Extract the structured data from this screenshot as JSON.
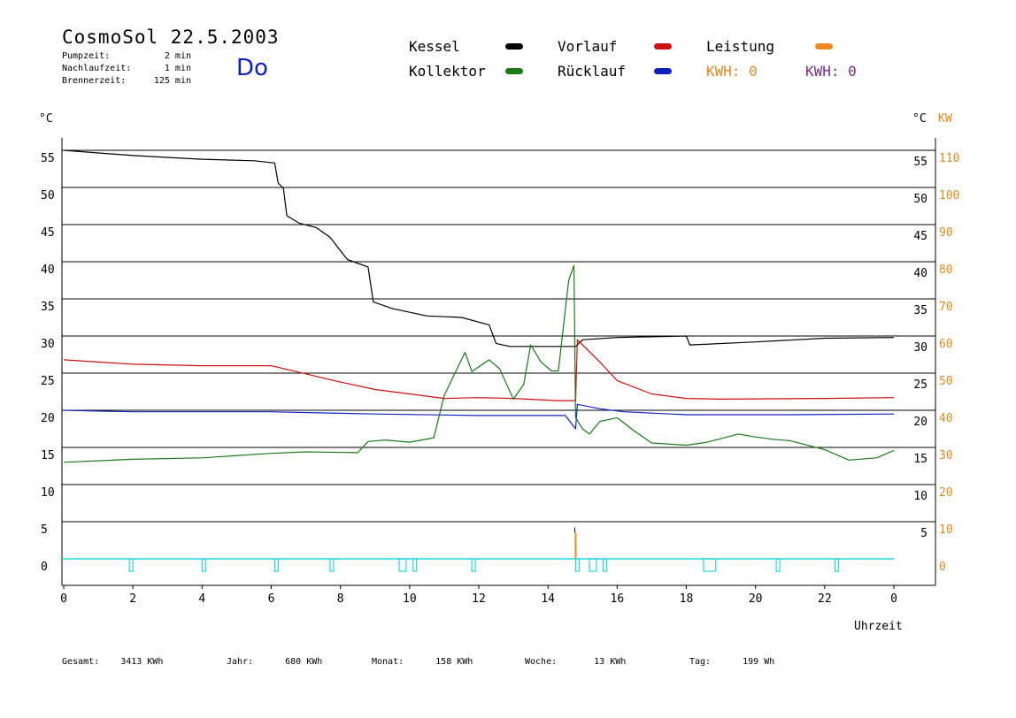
{
  "header": {
    "title": "CosmoSol 22.5.2003",
    "day": "Do",
    "meta": [
      {
        "label": "Pumpzeit:",
        "value": "2 min"
      },
      {
        "label": "Nachlaufzeit:",
        "value": "1 min"
      },
      {
        "label": "Brennerzeit:",
        "value": "125 min"
      }
    ]
  },
  "legend": {
    "kessel": "Kessel",
    "kollektor": "Kollektor",
    "vorlauf": "Vorlauf",
    "ruecklauf": "Rücklauf",
    "leistung": "Leistung",
    "kwh1": "KWH: 0",
    "kwh2": "KWH: 0"
  },
  "axes": {
    "left_unit": "°C",
    "right_unit_c": "°C",
    "right_unit_kw": "KW",
    "xlabel": "Uhrzeit"
  },
  "footer": [
    {
      "label": "Gesamt:",
      "value": "3413 KWh"
    },
    {
      "label": "Jahr:",
      "value": "680 KWh"
    },
    {
      "label": "Monat:",
      "value": "158 KWh"
    },
    {
      "label": "Woche:",
      "value": "13 KWh"
    },
    {
      "label": "Tag:",
      "value": "199 Wh"
    }
  ],
  "chart_data": {
    "type": "line",
    "title": "CosmoSol 22.5.2003",
    "xlabel": "Uhrzeit",
    "ylabel": "°C",
    "xlim": [
      0,
      24
    ],
    "ylim": [
      0,
      55
    ],
    "x_ticks": [
      "0",
      "2",
      "4",
      "6",
      "8",
      "10",
      "12",
      "14",
      "16",
      "18",
      "20",
      "22",
      "0"
    ],
    "y_ticks_left": [
      "0",
      "5",
      "10",
      "15",
      "20",
      "25",
      "30",
      "35",
      "40",
      "45",
      "50",
      "55"
    ],
    "y_ticks_right_c": [
      "5",
      "10",
      "15",
      "20",
      "25",
      "30",
      "35",
      "40",
      "45",
      "50",
      "55"
    ],
    "y_ticks_right_kw": [
      "0",
      "10",
      "20",
      "30",
      "40",
      "50",
      "60",
      "70",
      "80",
      "90",
      "100",
      "110"
    ],
    "grid": true,
    "colors": {
      "kessel": "#000000",
      "kollektor": "#1a7a1a",
      "vorlauf": "#cc1010",
      "ruecklauf": "#1020c0",
      "leistung": "#f08a20",
      "pump": "#20d8e0",
      "power_axis": "#e08a1e"
    },
    "series": [
      {
        "name": "Kessel",
        "color": "#000000",
        "points": [
          [
            0,
            55
          ],
          [
            2,
            54.3
          ],
          [
            4,
            53.8
          ],
          [
            5.5,
            53.6
          ],
          [
            6.1,
            53.3
          ],
          [
            6.2,
            50.6
          ],
          [
            6.35,
            49.9
          ],
          [
            6.45,
            46.2
          ],
          [
            6.8,
            45.2
          ],
          [
            7.3,
            44.6
          ],
          [
            7.7,
            43.3
          ],
          [
            8.2,
            40.3
          ],
          [
            8.8,
            39.3
          ],
          [
            8.95,
            34.6
          ],
          [
            9.5,
            33.7
          ],
          [
            10.5,
            32.7
          ],
          [
            11.5,
            32.5
          ],
          [
            12.3,
            31.5
          ],
          [
            12.5,
            29
          ],
          [
            12.9,
            28.6
          ],
          [
            14.8,
            28.6
          ],
          [
            15,
            29.5
          ],
          [
            16,
            29.8
          ],
          [
            18,
            30
          ],
          [
            18.1,
            28.8
          ],
          [
            20,
            29.2
          ],
          [
            22,
            29.7
          ],
          [
            24,
            29.8
          ]
        ]
      },
      {
        "name": "Vorlauf",
        "color": "#cc1010",
        "points": [
          [
            0,
            26.8
          ],
          [
            2,
            26.2
          ],
          [
            4,
            26
          ],
          [
            6,
            26
          ],
          [
            7,
            24.9
          ],
          [
            8,
            23.8
          ],
          [
            9,
            22.8
          ],
          [
            10,
            22.2
          ],
          [
            11,
            21.6
          ],
          [
            12,
            21.7
          ],
          [
            13,
            21.6
          ],
          [
            14.3,
            21.3
          ],
          [
            14.8,
            21.3
          ],
          [
            14.85,
            29.5
          ],
          [
            15.5,
            26.5
          ],
          [
            16,
            24
          ],
          [
            17,
            22.2
          ],
          [
            18,
            21.6
          ],
          [
            19,
            21.5
          ],
          [
            22,
            21.6
          ],
          [
            24,
            21.7
          ]
        ]
      },
      {
        "name": "Rücklauf",
        "color": "#1020c0",
        "points": [
          [
            0,
            20
          ],
          [
            2,
            19.8
          ],
          [
            4,
            19.8
          ],
          [
            6,
            19.8
          ],
          [
            8,
            19.6
          ],
          [
            9,
            19.5
          ],
          [
            12,
            19.3
          ],
          [
            14.5,
            19.3
          ],
          [
            14.8,
            17.5
          ],
          [
            14.85,
            20.8
          ],
          [
            15.5,
            20.2
          ],
          [
            16.2,
            19.8
          ],
          [
            18,
            19.4
          ],
          [
            21,
            19.4
          ],
          [
            24,
            19.5
          ]
        ]
      },
      {
        "name": "Kollektor",
        "color": "#1a7a1a",
        "points": [
          [
            0,
            13
          ],
          [
            2,
            13.4
          ],
          [
            4,
            13.6
          ],
          [
            6,
            14.2
          ],
          [
            7,
            14.4
          ],
          [
            8.5,
            14.3
          ],
          [
            8.8,
            15.8
          ],
          [
            9.3,
            16
          ],
          [
            10,
            15.7
          ],
          [
            10.7,
            16.3
          ],
          [
            11,
            22
          ],
          [
            11.6,
            27.8
          ],
          [
            11.8,
            25.2
          ],
          [
            12.3,
            26.8
          ],
          [
            12.6,
            25.6
          ],
          [
            13,
            21.5
          ],
          [
            13.3,
            23.5
          ],
          [
            13.5,
            28.8
          ],
          [
            13.8,
            26.5
          ],
          [
            14.1,
            25.3
          ],
          [
            14.3,
            25.3
          ],
          [
            14.6,
            37.5
          ],
          [
            14.75,
            39.5
          ],
          [
            14.8,
            19
          ],
          [
            15,
            17.5
          ],
          [
            15.2,
            16.8
          ],
          [
            15.5,
            18.5
          ],
          [
            16,
            19
          ],
          [
            16.5,
            17.2
          ],
          [
            17,
            15.6
          ],
          [
            18,
            15.3
          ],
          [
            18.6,
            15.7
          ],
          [
            19.5,
            16.8
          ],
          [
            20,
            16.4
          ],
          [
            20.5,
            16.1
          ],
          [
            21,
            15.9
          ],
          [
            22,
            14.7
          ],
          [
            22.7,
            13.3
          ],
          [
            23.5,
            13.6
          ],
          [
            24,
            14.6
          ]
        ]
      }
    ],
    "leistung_spike": {
      "x": 14.8,
      "kw": 7
    },
    "pump_on_intervals": [
      [
        1.9,
        2.0
      ],
      [
        4.0,
        4.1
      ],
      [
        6.1,
        6.2
      ],
      [
        7.7,
        7.8
      ],
      [
        9.7,
        9.9
      ],
      [
        10.1,
        10.2
      ],
      [
        11.8,
        11.9
      ],
      [
        14.8,
        14.9
      ],
      [
        15.2,
        15.4
      ],
      [
        15.6,
        15.7
      ],
      [
        18.5,
        18.85
      ],
      [
        20.6,
        20.7
      ],
      [
        22.3,
        22.4
      ]
    ]
  }
}
